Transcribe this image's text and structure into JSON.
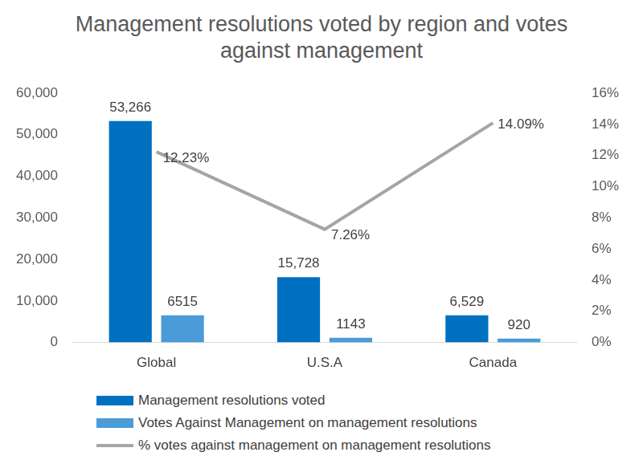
{
  "chart_data": {
    "type": "bar",
    "title": "Management resolutions voted by region and votes against management",
    "categories": [
      "Global",
      "U.S.A",
      "Canada"
    ],
    "series": [
      {
        "name": "Management resolutions voted",
        "type": "bar",
        "color": "#0070c0",
        "values": [
          53266,
          15728,
          6529
        ],
        "value_labels": [
          "53,266",
          "15,728",
          "6,529"
        ]
      },
      {
        "name": "Votes Against Management on management resolutions",
        "type": "bar",
        "color": "#4a9bd8",
        "values": [
          6515,
          1143,
          920
        ]
      },
      {
        "name": "% votes against management on management resolutions",
        "type": "line",
        "axis": "y2",
        "color": "#a5a5a5",
        "values": [
          12.23,
          7.26,
          14.09
        ],
        "value_labels": [
          "12.23%",
          "7.26%",
          "14.09%"
        ]
      }
    ],
    "ylim": [
      0,
      60000
    ],
    "yticks": [
      0,
      {
        "value": 10000,
        "label": "10,000"
      },
      {
        "value": 20000,
        "label": "20,000"
      },
      {
        "value": 30000,
        "label": "30,000"
      },
      {
        "value": 40000,
        "label": "40,000"
      },
      {
        "value": 50000,
        "label": "50,000"
      },
      {
        "value": 60000,
        "label": "60,000"
      }
    ],
    "y2lim": [
      0,
      16
    ],
    "y2ticks": [
      {
        "value": 0,
        "label": "0%"
      },
      {
        "value": 2,
        "label": "2%"
      },
      {
        "value": 4,
        "label": "4%"
      },
      {
        "value": 6,
        "label": "6%"
      },
      {
        "value": 8,
        "label": "8%"
      },
      {
        "value": 10,
        "label": "10%"
      },
      {
        "value": 12,
        "label": "12%"
      },
      {
        "value": 14,
        "label": "14%"
      },
      {
        "value": 16,
        "label": "16%"
      }
    ],
    "grid": false,
    "legend": "bottom",
    "data_labels": true
  }
}
